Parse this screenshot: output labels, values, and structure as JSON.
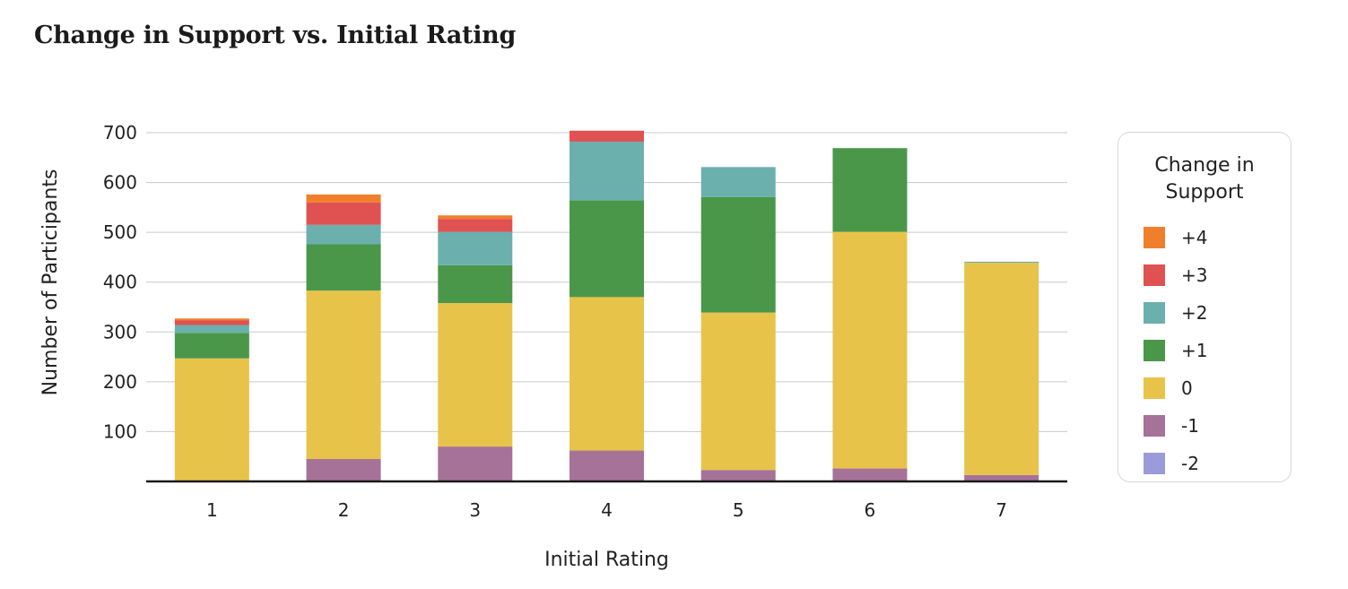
{
  "chart_data": {
    "type": "bar",
    "stacked": true,
    "title": "Change in Support vs. Initial Rating",
    "xlabel": "Initial Rating",
    "ylabel": "Number of Participants",
    "categories": [
      "1",
      "2",
      "3",
      "4",
      "5",
      "6",
      "7"
    ],
    "ylim": [
      0,
      700
    ],
    "yticks": [
      100,
      200,
      300,
      400,
      500,
      600,
      700
    ],
    "grid": true,
    "legend": {
      "title": "Change in Support",
      "placement": "right"
    },
    "series": [
      {
        "name": "-2",
        "color": "#9b9bdc",
        "values": [
          0,
          0,
          0,
          0,
          0,
          0,
          0
        ]
      },
      {
        "name": "-1",
        "color": "#a67298",
        "values": [
          0,
          45,
          70,
          62,
          23,
          26,
          13
        ]
      },
      {
        "name": "0",
        "color": "#e8c34a",
        "values": [
          247,
          338,
          288,
          308,
          316,
          475,
          426
        ]
      },
      {
        "name": "+1",
        "color": "#4a974a",
        "values": [
          51,
          93,
          76,
          194,
          232,
          168,
          0
        ]
      },
      {
        "name": "+2",
        "color": "#6bb0ad",
        "values": [
          16,
          39,
          67,
          118,
          60,
          0,
          2
        ]
      },
      {
        "name": "+3",
        "color": "#e05252",
        "values": [
          9,
          45,
          26,
          22,
          0,
          0,
          0
        ]
      },
      {
        "name": "+4",
        "color": "#f07f2d",
        "values": [
          4,
          16,
          7,
          0,
          0,
          0,
          0
        ]
      }
    ]
  }
}
